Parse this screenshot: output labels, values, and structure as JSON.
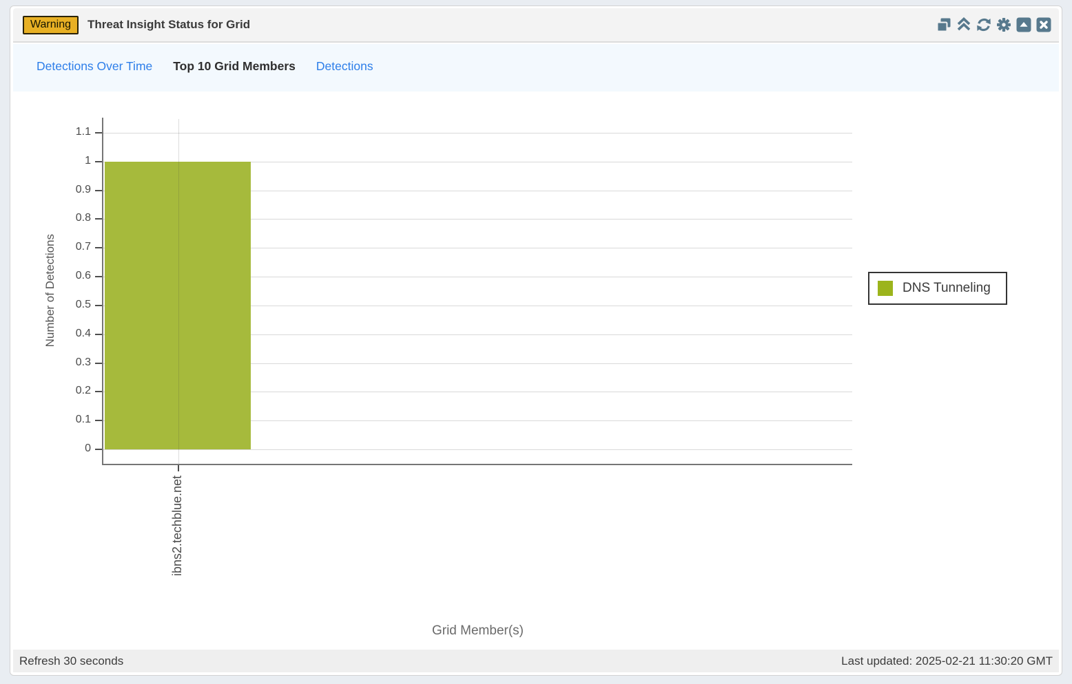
{
  "window": {
    "badge": "Warning",
    "title": "Threat Insight Status for Grid",
    "toolbar_icons": [
      "cascade-windows-icon",
      "double-chevron-up-icon",
      "refresh-icon",
      "gear-icon",
      "collapse-icon",
      "close-icon"
    ]
  },
  "tabs": [
    {
      "label": "Detections Over Time",
      "active": false
    },
    {
      "label": "Top 10 Grid Members",
      "active": true
    },
    {
      "label": "Detections",
      "active": false
    }
  ],
  "footer": {
    "refresh_text": "Refresh 30 seconds",
    "last_updated_text": "Last updated: 2025-02-21 11:30:20 GMT"
  },
  "colors": {
    "bar": "#a6ba3c",
    "legend_swatch": "#9cb41c",
    "badge_bg": "#e8b024",
    "link": "#2d7ee9",
    "toolbar_icon": "#57798d"
  },
  "chart_data": {
    "type": "bar",
    "title": "",
    "categories": [
      "ibns2.techblue.net"
    ],
    "series": [
      {
        "name": "DNS Tunneling",
        "color": "#a6ba3c",
        "values": [
          1
        ]
      }
    ],
    "xlabel": "Grid Member(s)",
    "ylabel": "Number of Detections",
    "ylim": [
      0,
      1.1
    ],
    "ytick_step": 0.1,
    "grid": true,
    "legend_position": "right"
  }
}
